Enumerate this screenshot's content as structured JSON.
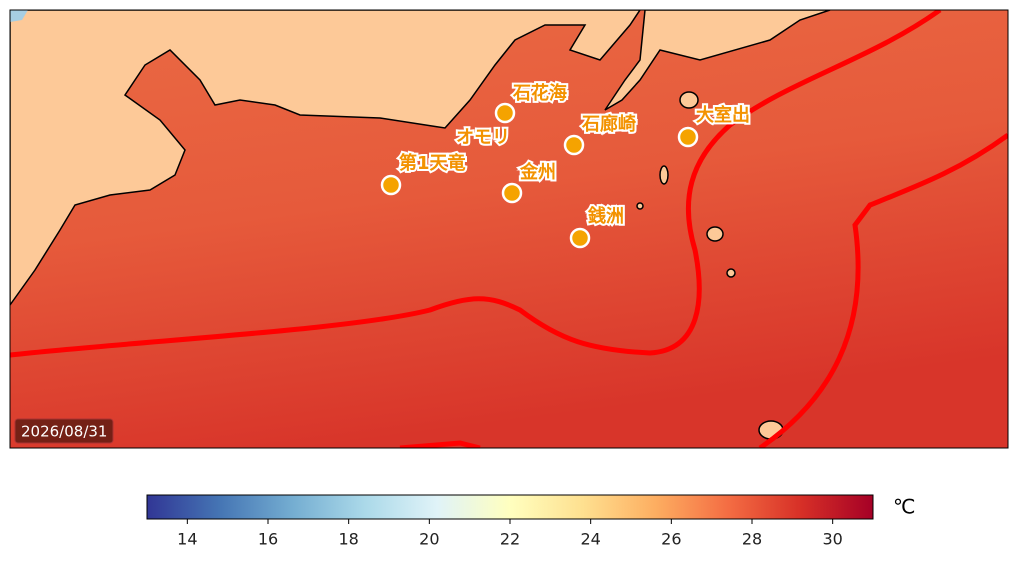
{
  "map": {
    "stations": [
      "石花海",
      "オモリ",
      "第1天竜",
      "金州",
      "石廊崎",
      "大室出",
      "銭洲"
    ],
    "date": "2026/08/31"
  },
  "colorbar": {
    "lim": [
      13,
      31
    ],
    "ticks": [
      14,
      16,
      18,
      20,
      22,
      24,
      26,
      28,
      30
    ],
    "unit": "℃",
    "colors": [
      "#313695",
      "#4575b4",
      "#74add1",
      "#abd9e9",
      "#e0f3f8",
      "#ffffbf",
      "#fee090",
      "#fdae61",
      "#f46d43",
      "#d73027",
      "#a50026"
    ]
  }
}
